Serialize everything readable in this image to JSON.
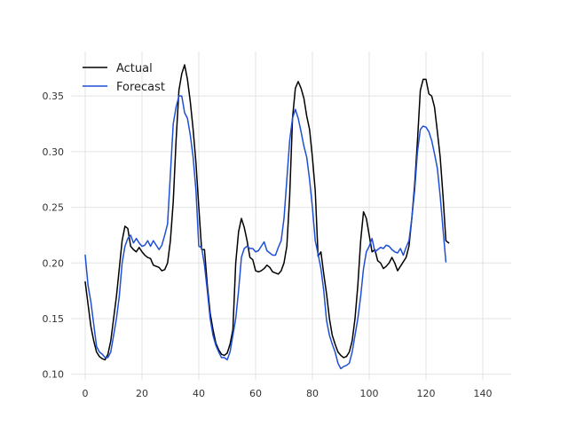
{
  "chart_data": {
    "type": "line",
    "title": "",
    "xlabel": "",
    "ylabel": "",
    "xlim": [
      -5,
      150
    ],
    "ylim": [
      0.095,
      0.39
    ],
    "x_ticks": [
      0,
      20,
      40,
      60,
      80,
      100,
      120,
      140
    ],
    "y_ticks": [
      0.1,
      0.15,
      0.2,
      0.25,
      0.3,
      0.35
    ],
    "x_tick_labels": [
      "0",
      "20",
      "40",
      "60",
      "80",
      "100",
      "120",
      "140"
    ],
    "y_tick_labels": [
      "0.10",
      "0.15",
      "0.20",
      "0.25",
      "0.30",
      "0.35"
    ],
    "grid": true,
    "legend_position": "top-left",
    "series": [
      {
        "name": "Actual",
        "color": "#000000",
        "values": [
          0.183,
          0.163,
          0.143,
          0.13,
          0.12,
          0.116,
          0.114,
          0.113,
          0.118,
          0.13,
          0.15,
          0.17,
          0.195,
          0.22,
          0.233,
          0.231,
          0.215,
          0.212,
          0.21,
          0.214,
          0.21,
          0.207,
          0.205,
          0.204,
          0.198,
          0.197,
          0.196,
          0.193,
          0.194,
          0.2,
          0.22,
          0.255,
          0.31,
          0.355,
          0.37,
          0.378,
          0.365,
          0.345,
          0.32,
          0.29,
          0.25,
          0.212,
          0.212,
          0.18,
          0.155,
          0.14,
          0.128,
          0.122,
          0.118,
          0.117,
          0.119,
          0.127,
          0.14,
          0.2,
          0.228,
          0.24,
          0.232,
          0.22,
          0.205,
          0.203,
          0.193,
          0.192,
          0.193,
          0.195,
          0.198,
          0.196,
          0.192,
          0.191,
          0.19,
          0.193,
          0.2,
          0.215,
          0.26,
          0.33,
          0.357,
          0.363,
          0.357,
          0.348,
          0.332,
          0.32,
          0.295,
          0.265,
          0.206,
          0.21,
          0.19,
          0.172,
          0.15,
          0.135,
          0.127,
          0.12,
          0.117,
          0.115,
          0.116,
          0.12,
          0.13,
          0.15,
          0.18,
          0.22,
          0.246,
          0.24,
          0.225,
          0.21,
          0.212,
          0.202,
          0.2,
          0.195,
          0.197,
          0.2,
          0.205,
          0.2,
          0.193,
          0.197,
          0.201,
          0.205,
          0.215,
          0.24,
          0.27,
          0.31,
          0.355,
          0.365,
          0.365,
          0.352,
          0.35,
          0.34,
          0.318,
          0.295,
          0.26,
          0.22,
          0.218
        ]
      },
      {
        "name": "Forecast",
        "color": "#1f4fd6",
        "values": [
          0.207,
          0.18,
          0.165,
          0.145,
          0.125,
          0.12,
          0.118,
          0.115,
          0.115,
          0.12,
          0.135,
          0.15,
          0.17,
          0.2,
          0.215,
          0.222,
          0.225,
          0.218,
          0.222,
          0.218,
          0.215,
          0.216,
          0.22,
          0.215,
          0.22,
          0.216,
          0.212,
          0.216,
          0.225,
          0.235,
          0.28,
          0.325,
          0.34,
          0.35,
          0.35,
          0.335,
          0.33,
          0.315,
          0.295,
          0.265,
          0.215,
          0.214,
          0.198,
          0.175,
          0.15,
          0.135,
          0.126,
          0.12,
          0.115,
          0.115,
          0.113,
          0.12,
          0.135,
          0.15,
          0.175,
          0.205,
          0.213,
          0.215,
          0.213,
          0.213,
          0.21,
          0.211,
          0.215,
          0.219,
          0.211,
          0.209,
          0.207,
          0.207,
          0.214,
          0.22,
          0.24,
          0.275,
          0.31,
          0.33,
          0.338,
          0.33,
          0.318,
          0.305,
          0.295,
          0.275,
          0.25,
          0.22,
          0.208,
          0.195,
          0.175,
          0.148,
          0.135,
          0.127,
          0.12,
          0.11,
          0.105,
          0.107,
          0.108,
          0.11,
          0.12,
          0.135,
          0.15,
          0.17,
          0.195,
          0.21,
          0.215,
          0.222,
          0.21,
          0.212,
          0.214,
          0.213,
          0.216,
          0.215,
          0.212,
          0.21,
          0.209,
          0.213,
          0.207,
          0.214,
          0.22,
          0.24,
          0.265,
          0.3,
          0.32,
          0.323,
          0.322,
          0.318,
          0.31,
          0.298,
          0.285,
          0.26,
          0.23,
          0.201
        ]
      }
    ]
  }
}
